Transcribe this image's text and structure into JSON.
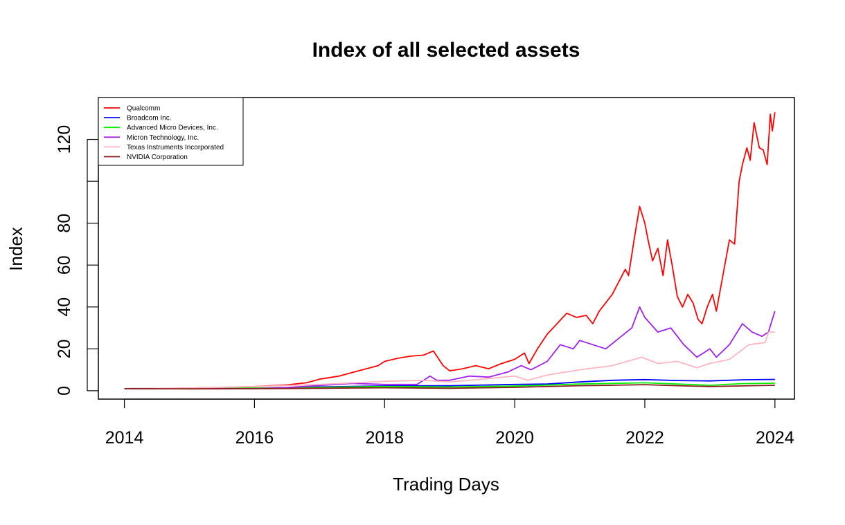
{
  "chart_data": {
    "type": "line",
    "title": "Index of all selected assets",
    "xlabel": "Trading Days",
    "ylabel": "Index",
    "xlim": [
      2013.6,
      2024.3
    ],
    "ylim": [
      -4,
      140
    ],
    "x_ticks": [
      2014,
      2016,
      2018,
      2020,
      2022,
      2024
    ],
    "y_ticks": [
      0,
      20,
      40,
      60,
      80,
      100,
      120
    ],
    "y_tick_labels": [
      "0",
      "20",
      "40",
      "60",
      "80",
      "",
      "120"
    ],
    "grid": false,
    "legend_position": "top-left",
    "series": [
      {
        "name": "Qualcomm",
        "color": "#ff0000",
        "points": [
          [
            2014.0,
            1.0
          ],
          [
            2014.5,
            1.05
          ],
          [
            2015.0,
            1.3
          ],
          [
            2015.5,
            1.6
          ],
          [
            2016.0,
            2.0
          ],
          [
            2016.5,
            2.8
          ],
          [
            2016.8,
            3.8
          ],
          [
            2017.0,
            5.5
          ],
          [
            2017.3,
            7.0
          ],
          [
            2017.6,
            9.5
          ],
          [
            2017.9,
            12.0
          ],
          [
            2018.0,
            14.0
          ],
          [
            2018.2,
            15.5
          ],
          [
            2018.4,
            16.5
          ],
          [
            2018.6,
            17.0
          ],
          [
            2018.75,
            19.0
          ],
          [
            2018.9,
            12.0
          ],
          [
            2019.0,
            9.5
          ],
          [
            2019.2,
            10.5
          ],
          [
            2019.4,
            12.0
          ],
          [
            2019.6,
            10.5
          ],
          [
            2019.8,
            13.0
          ],
          [
            2020.0,
            15.0
          ],
          [
            2020.15,
            18.0
          ],
          [
            2020.22,
            13.0
          ],
          [
            2020.35,
            20.0
          ],
          [
            2020.5,
            27.0
          ],
          [
            2020.65,
            32.0
          ],
          [
            2020.8,
            37.0
          ],
          [
            2020.95,
            35.0
          ],
          [
            2021.1,
            36.0
          ],
          [
            2021.2,
            32.0
          ],
          [
            2021.3,
            38.0
          ],
          [
            2021.5,
            46.0
          ],
          [
            2021.6,
            52.0
          ],
          [
            2021.7,
            58.0
          ],
          [
            2021.75,
            55.0
          ],
          [
            2021.85,
            75.0
          ],
          [
            2021.92,
            88.0
          ],
          [
            2022.0,
            80.0
          ],
          [
            2022.05,
            72.0
          ],
          [
            2022.12,
            62.0
          ],
          [
            2022.2,
            68.0
          ],
          [
            2022.28,
            55.0
          ],
          [
            2022.35,
            72.0
          ],
          [
            2022.42,
            60.0
          ],
          [
            2022.5,
            45.0
          ],
          [
            2022.58,
            40.0
          ],
          [
            2022.66,
            46.0
          ],
          [
            2022.74,
            42.0
          ],
          [
            2022.82,
            34.0
          ],
          [
            2022.88,
            32.0
          ],
          [
            2022.96,
            40.0
          ],
          [
            2023.04,
            46.0
          ],
          [
            2023.1,
            38.0
          ],
          [
            2023.2,
            55.0
          ],
          [
            2023.3,
            72.0
          ],
          [
            2023.38,
            70.0
          ],
          [
            2023.45,
            100.0
          ],
          [
            2023.5,
            108.0
          ],
          [
            2023.57,
            116.0
          ],
          [
            2023.62,
            110.0
          ],
          [
            2023.68,
            128.0
          ],
          [
            2023.76,
            116.0
          ],
          [
            2023.82,
            115.0
          ],
          [
            2023.88,
            108.0
          ],
          [
            2023.93,
            132.0
          ],
          [
            2023.96,
            124.0
          ],
          [
            2024.0,
            133.0
          ]
        ]
      },
      {
        "name": "Broadcom Inc.",
        "color": "#0000ff",
        "points": [
          [
            2014.0,
            1.0
          ],
          [
            2015.0,
            1.0
          ],
          [
            2016.0,
            1.2
          ],
          [
            2017.0,
            1.8
          ],
          [
            2018.0,
            2.3
          ],
          [
            2019.0,
            2.4
          ],
          [
            2020.0,
            3.0
          ],
          [
            2020.5,
            3.2
          ],
          [
            2021.0,
            4.2
          ],
          [
            2021.5,
            5.0
          ],
          [
            2022.0,
            5.3
          ],
          [
            2022.5,
            4.9
          ],
          [
            2023.0,
            4.7
          ],
          [
            2023.5,
            5.2
          ],
          [
            2024.0,
            5.4
          ]
        ]
      },
      {
        "name": "Advanced Micro Devices, Inc.",
        "color": "#00ee00",
        "points": [
          [
            2014.0,
            1.0
          ],
          [
            2015.0,
            1.2
          ],
          [
            2016.0,
            1.3
          ],
          [
            2017.0,
            1.6
          ],
          [
            2018.0,
            2.0
          ],
          [
            2019.0,
            1.8
          ],
          [
            2020.0,
            2.2
          ],
          [
            2021.0,
            3.2
          ],
          [
            2021.5,
            3.5
          ],
          [
            2022.0,
            3.8
          ],
          [
            2022.5,
            3.2
          ],
          [
            2023.0,
            2.6
          ],
          [
            2023.5,
            3.4
          ],
          [
            2024.0,
            3.6
          ]
        ]
      },
      {
        "name": "Micron Technology, Inc.",
        "color": "#a020f0",
        "points": [
          [
            2014.0,
            1.0
          ],
          [
            2015.0,
            1.1
          ],
          [
            2016.0,
            1.0
          ],
          [
            2016.5,
            1.5
          ],
          [
            2017.0,
            2.5
          ],
          [
            2017.5,
            3.5
          ],
          [
            2018.0,
            3.0
          ],
          [
            2018.5,
            3.0
          ],
          [
            2018.7,
            7.0
          ],
          [
            2018.8,
            5.0
          ],
          [
            2019.0,
            5.0
          ],
          [
            2019.3,
            7.0
          ],
          [
            2019.6,
            6.5
          ],
          [
            2019.9,
            9.0
          ],
          [
            2020.1,
            12.0
          ],
          [
            2020.25,
            10.0
          ],
          [
            2020.5,
            14.0
          ],
          [
            2020.7,
            22.0
          ],
          [
            2020.9,
            20.0
          ],
          [
            2021.0,
            24.0
          ],
          [
            2021.2,
            22.0
          ],
          [
            2021.4,
            20.0
          ],
          [
            2021.6,
            25.0
          ],
          [
            2021.8,
            30.0
          ],
          [
            2021.92,
            40.0
          ],
          [
            2022.0,
            35.0
          ],
          [
            2022.2,
            28.0
          ],
          [
            2022.4,
            30.0
          ],
          [
            2022.6,
            22.0
          ],
          [
            2022.8,
            16.0
          ],
          [
            2023.0,
            20.0
          ],
          [
            2023.1,
            16.0
          ],
          [
            2023.3,
            22.0
          ],
          [
            2023.5,
            32.0
          ],
          [
            2023.65,
            28.0
          ],
          [
            2023.8,
            26.0
          ],
          [
            2023.9,
            28.0
          ],
          [
            2024.0,
            38.0
          ]
        ]
      },
      {
        "name": "Texas Instruments Incorporated",
        "color": "#ffb6c1",
        "points": [
          [
            2014.0,
            1.0
          ],
          [
            2015.0,
            1.3
          ],
          [
            2016.0,
            2.0
          ],
          [
            2017.0,
            3.0
          ],
          [
            2018.0,
            4.5
          ],
          [
            2018.6,
            5.0
          ],
          [
            2019.0,
            4.2
          ],
          [
            2019.5,
            5.5
          ],
          [
            2020.0,
            7.0
          ],
          [
            2020.2,
            5.0
          ],
          [
            2020.5,
            7.5
          ],
          [
            2021.0,
            10.0
          ],
          [
            2021.5,
            12.0
          ],
          [
            2021.95,
            16.0
          ],
          [
            2022.2,
            13.0
          ],
          [
            2022.5,
            14.0
          ],
          [
            2022.8,
            11.0
          ],
          [
            2023.0,
            13.0
          ],
          [
            2023.3,
            15.0
          ],
          [
            2023.6,
            22.0
          ],
          [
            2023.85,
            23.0
          ],
          [
            2023.9,
            28.0
          ],
          [
            2024.0,
            28.0
          ]
        ]
      },
      {
        "name": "NVIDIA Corporation",
        "color": "#8b1a1a",
        "points": [
          [
            2014.0,
            1.0
          ],
          [
            2015.0,
            0.9
          ],
          [
            2016.0,
            1.0
          ],
          [
            2017.0,
            1.2
          ],
          [
            2018.0,
            1.4
          ],
          [
            2019.0,
            1.2
          ],
          [
            2020.0,
            1.6
          ],
          [
            2021.0,
            2.4
          ],
          [
            2021.5,
            2.6
          ],
          [
            2022.0,
            2.9
          ],
          [
            2022.5,
            2.4
          ],
          [
            2023.0,
            2.0
          ],
          [
            2023.5,
            2.3
          ],
          [
            2024.0,
            2.6
          ]
        ]
      }
    ]
  }
}
